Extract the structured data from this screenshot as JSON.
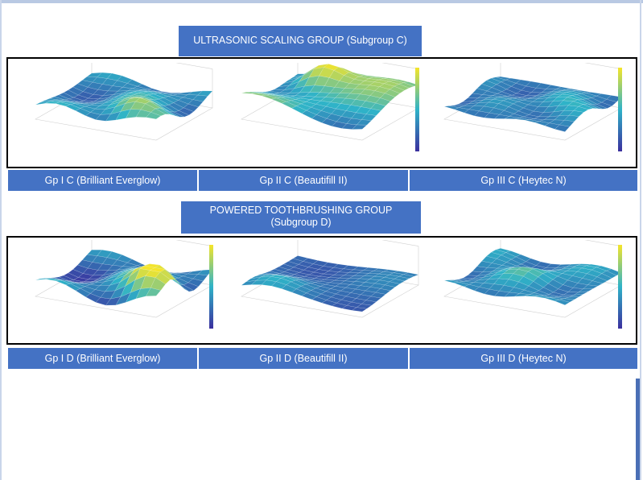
{
  "subgroup_c": {
    "banner": [
      "ULTRASONIC SCALING GROUP (Subgroup C)"
    ],
    "labels": [
      "Gp I C (Brilliant Everglow)",
      "Gp II C (Beautifill II)",
      "Gp III C (Heytec N)"
    ]
  },
  "subgroup_d": {
    "banner": [
      "POWERED TOOTHBRUSHING GROUP",
      "(Subgroup D)"
    ],
    "labels": [
      "Gp I D (Brilliant Everglow)",
      "Gp II D (Beautifill II)",
      "Gp III D (Heytec N)"
    ]
  },
  "colors": {
    "banner": "#4472c4",
    "frame": "#000000",
    "surface_low": "#3b2f9e",
    "surface_mid": "#2fb3c8",
    "surface_high": "#f5e52a"
  }
}
